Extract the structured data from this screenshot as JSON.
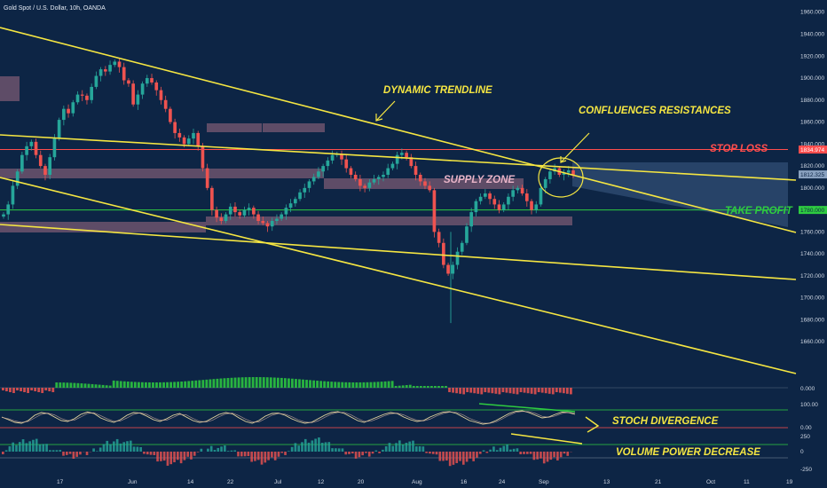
{
  "header": {
    "symbol_title": "Gold Spot / U.S. Dollar, 10h, OANDA"
  },
  "colors": {
    "background": "#0d2545",
    "up": "#26a69a",
    "down": "#ef5350",
    "trendline": "#f5e642",
    "stop_loss": "#ff4d4d",
    "take_profit": "#2ecc40",
    "zone": "#7a5a73",
    "annotation": "#f5e642"
  },
  "annotations": {
    "dynamic_trendline": "DYNAMIC TRENDLINE",
    "confluences": "CONFLUENCES RESISTANCES",
    "stop_loss": "STOP LOSS",
    "supply_zone": "SUPPLY ZONE",
    "take_profit": "TAKE PROFIT",
    "stoch_divergence": "STOCH DIVERGENCE",
    "volume_power": "VOLUME POWER DECREASE"
  },
  "chart_data": {
    "type": "candlestick",
    "y_axis": {
      "range": [
        1640,
        1963
      ],
      "ticks": [
        "1960.000",
        "1940.000",
        "1920.000",
        "1900.000",
        "1880.000",
        "1860.000",
        "1840.000",
        "1820.000",
        "1800.000",
        "1780.000",
        "1760.000",
        "1740.000",
        "1720.000",
        "1700.000",
        "1680.000",
        "1660.000"
      ]
    },
    "x_axis": {
      "tick_labels": [
        "17",
        "Jun",
        "14",
        "22",
        "Jul",
        "12",
        "20",
        "Aug",
        "16",
        "24",
        "Sep",
        "13",
        "21",
        "Oct",
        "11",
        "19"
      ]
    },
    "price_labels": {
      "stop_loss": "1834.974",
      "current": "1812.325",
      "take_profit": "1780.000"
    },
    "levels": {
      "stop_loss": 1834.974,
      "current": 1812.325,
      "take_profit": 1780.0
    },
    "osc_labels": {
      "zero_top": "0.000",
      "stoch_100": "100.00",
      "stoch_0": "0.00",
      "vol_250": "250",
      "vol_0": "0",
      "vol_neg": "-250"
    },
    "close_path": [
      1776,
      1785,
      1802,
      1815,
      1830,
      1838,
      1842,
      1830,
      1820,
      1812,
      1828,
      1845,
      1862,
      1872,
      1868,
      1878,
      1885,
      1884,
      1880,
      1892,
      1902,
      1908,
      1906,
      1912,
      1915,
      1910,
      1898,
      1895,
      1876,
      1885,
      1895,
      1900,
      1896,
      1889,
      1880,
      1872,
      1860,
      1850,
      1846,
      1840,
      1845,
      1850,
      1838,
      1818,
      1800,
      1780,
      1773,
      1770,
      1776,
      1783,
      1778,
      1775,
      1780,
      1782,
      1776,
      1770,
      1768,
      1765,
      1770,
      1772,
      1776,
      1782,
      1786,
      1790,
      1796,
      1800,
      1806,
      1810,
      1815,
      1820,
      1825,
      1830,
      1831,
      1826,
      1818,
      1812,
      1808,
      1802,
      1800,
      1805,
      1808,
      1810,
      1812,
      1818,
      1822,
      1830,
      1832,
      1828,
      1820,
      1812,
      1806,
      1802,
      1798,
      1760,
      1750,
      1730,
      1722,
      1730,
      1742,
      1750,
      1765,
      1778,
      1788,
      1792,
      1795,
      1790,
      1785,
      1780,
      1785,
      1792,
      1798,
      1800,
      1795,
      1788,
      1780,
      1785,
      1800,
      1808,
      1815,
      1818,
      1812,
      1814,
      1816,
      1812
    ],
    "stoch_k": [
      60,
      45,
      30,
      25,
      40,
      70,
      85,
      80,
      60,
      40,
      35,
      50,
      75,
      88,
      80,
      55,
      40,
      30,
      45,
      70,
      85,
      82,
      65,
      45,
      35,
      50,
      70,
      80,
      60,
      40,
      30,
      35,
      55,
      75,
      85,
      78,
      55,
      35,
      25,
      40,
      65,
      80,
      82,
      70,
      50,
      35,
      25,
      30,
      50,
      70,
      85,
      90,
      80,
      60,
      40,
      30,
      45,
      60,
      75,
      85,
      80,
      60,
      45,
      35,
      40,
      60,
      75,
      88,
      90,
      80,
      60,
      40,
      30,
      20,
      25,
      40,
      60,
      80,
      92,
      95,
      85,
      70,
      55,
      60,
      75,
      88,
      85,
      75
    ],
    "stoch_d": [
      58,
      50,
      38,
      30,
      35,
      55,
      75,
      82,
      72,
      52,
      40,
      42,
      60,
      80,
      84,
      68,
      50,
      36,
      38,
      55,
      75,
      84,
      75,
      56,
      42,
      42,
      58,
      75,
      72,
      52,
      36,
      32,
      42,
      62,
      78,
      82,
      68,
      48,
      32,
      32,
      50,
      70,
      80,
      76,
      62,
      44,
      32,
      28,
      38,
      58,
      76,
      86,
      86,
      72,
      52,
      36,
      36,
      50,
      66,
      78,
      82,
      72,
      55,
      42,
      38,
      48,
      66,
      80,
      88,
      86,
      72,
      52,
      38,
      26,
      24,
      32,
      50,
      70,
      86,
      92,
      90,
      80,
      64,
      58,
      66,
      80,
      86,
      82
    ]
  }
}
